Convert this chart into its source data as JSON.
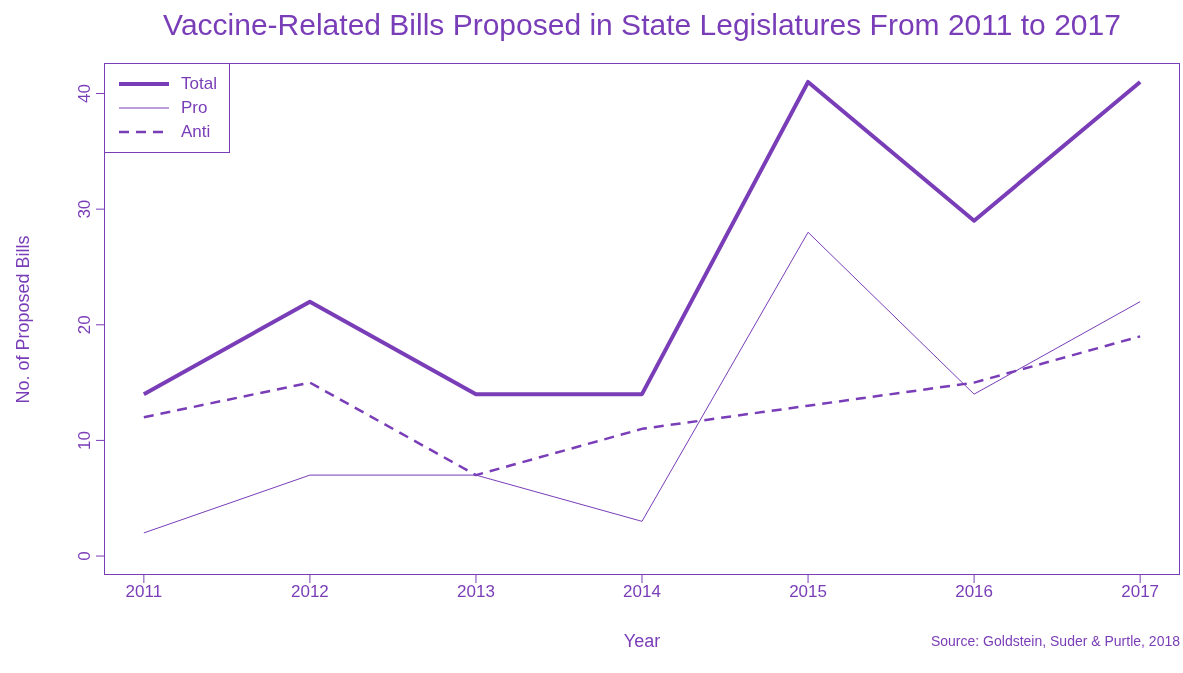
{
  "chart_data": {
    "type": "line",
    "title": "Vaccine-Related Bills Proposed in State Legislatures From 2011 to 2017",
    "xlabel": "Year",
    "ylabel": "No. of Proposed Bills",
    "annotations": [
      "Source: Goldstein, Suder & Purtle, 2018"
    ],
    "x": [
      2011,
      2012,
      2013,
      2014,
      2015,
      2016,
      2017
    ],
    "series": [
      {
        "name": "Total",
        "color": "#7a3db8",
        "line_style": "solid",
        "values": [
          14,
          22,
          14,
          14,
          41,
          29,
          41
        ]
      },
      {
        "name": "Pro",
        "color": "#7a3db8",
        "line_style": "solid",
        "values": [
          2,
          7,
          7,
          3,
          28,
          14,
          22
        ]
      },
      {
        "name": "Anti",
        "color": "#7a3db8",
        "line_style": "dashed",
        "values": [
          12,
          15,
          7,
          11,
          13,
          15,
          19
        ]
      }
    ],
    "xlim": [
      2010.76,
      2017.24
    ],
    "xticks": [
      2011,
      2012,
      2013,
      2014,
      2015,
      2016,
      2017
    ],
    "ylim": [
      -1.64,
      42.64
    ],
    "yticks": [
      0,
      10,
      20,
      30,
      40
    ],
    "grid": false,
    "legend": "top left",
    "marker": "none"
  }
}
